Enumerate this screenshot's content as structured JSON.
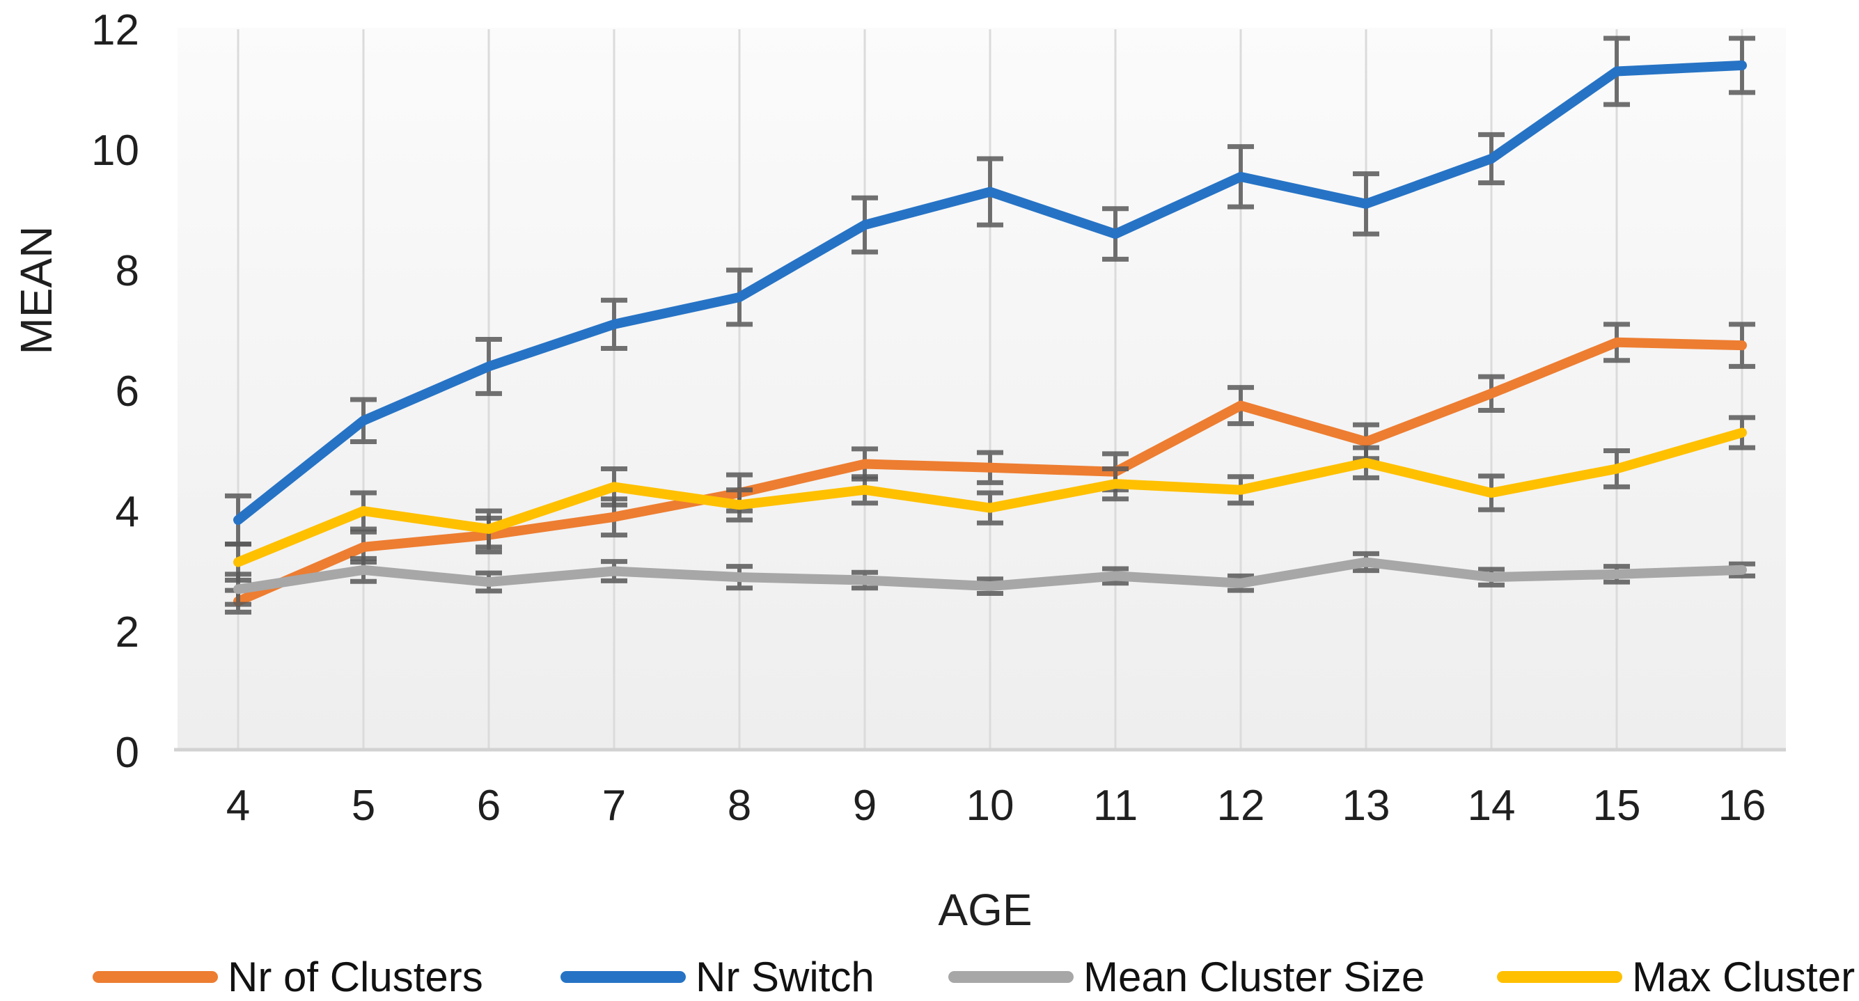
{
  "chart_data": {
    "type": "line",
    "title": "",
    "xlabel": "AGE",
    "ylabel": "MEAN",
    "x": [
      4,
      5,
      6,
      7,
      8,
      9,
      10,
      11,
      12,
      13,
      14,
      15,
      16
    ],
    "yticks": [
      0,
      2,
      4,
      6,
      8,
      10,
      12
    ],
    "ylim": [
      0,
      12
    ],
    "grid": "vertical-only",
    "legend_position": "bottom",
    "error_bars": true,
    "error_bar_color": "#595959",
    "gridline_color": "#DBDBDB",
    "axis_line_color": "#D2D2D2",
    "tick_label_color": "#1f1f1f",
    "plot_bg_top": "#FBFBFB",
    "plot_bg_bottom": "#EEEEEE",
    "series": [
      {
        "name": "Nr of Clusters",
        "color": "#ED7D31",
        "values": [
          2.5,
          3.4,
          3.6,
          3.9,
          4.3,
          4.78,
          4.72,
          4.65,
          5.75,
          5.15,
          5.95,
          6.8,
          6.75
        ],
        "errors": [
          0.18,
          0.25,
          0.28,
          0.3,
          0.3,
          0.25,
          0.25,
          0.3,
          0.3,
          0.28,
          0.28,
          0.3,
          0.35
        ]
      },
      {
        "name": "Nr Switch",
        "color": "#2673C5",
        "values": [
          3.85,
          5.5,
          6.4,
          7.1,
          7.55,
          8.75,
          9.3,
          8.6,
          9.55,
          9.1,
          9.85,
          11.3,
          11.4
        ],
        "errors": [
          0.4,
          0.35,
          0.45,
          0.4,
          0.45,
          0.45,
          0.55,
          0.42,
          0.5,
          0.5,
          0.4,
          0.55,
          0.45
        ]
      },
      {
        "name": "Mean Cluster Size",
        "color": "#A7A7A7",
        "values": [
          2.7,
          3.02,
          2.82,
          3.0,
          2.9,
          2.85,
          2.75,
          2.92,
          2.8,
          3.15,
          2.9,
          2.95,
          3.02
        ],
        "errors": [
          0.25,
          0.19,
          0.15,
          0.16,
          0.18,
          0.13,
          0.12,
          0.12,
          0.12,
          0.14,
          0.13,
          0.13,
          0.1
        ]
      },
      {
        "name": "Max Cluster",
        "color": "#FFC000",
        "values": [
          3.15,
          4.0,
          3.7,
          4.4,
          4.1,
          4.35,
          4.05,
          4.45,
          4.35,
          4.8,
          4.3,
          4.7,
          5.3
        ],
        "errors": [
          0.3,
          0.3,
          0.3,
          0.3,
          0.25,
          0.22,
          0.25,
          0.25,
          0.22,
          0.25,
          0.28,
          0.3,
          0.25
        ]
      }
    ]
  }
}
